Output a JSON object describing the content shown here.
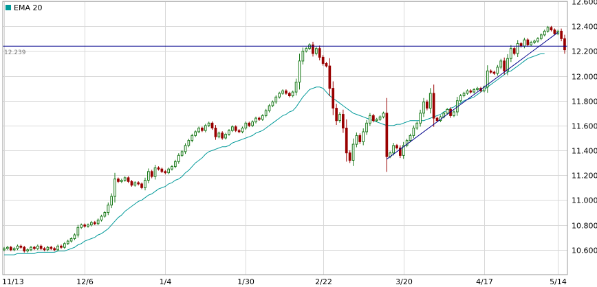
{
  "chart_data": {
    "type": "candlestick",
    "legend": {
      "label": "EMA 20",
      "color": "#009999"
    },
    "colors": {
      "up": "#1a7a1a",
      "down": "#990000",
      "ema": "#009999",
      "trendline": "#00008b",
      "hline": "#00008b",
      "grid": "#d8d8d8",
      "frame": "#9a9a9a"
    },
    "ylim": [
      10.4,
      12.6
    ],
    "grid": true,
    "y_ticks": [
      "12.600",
      "12.400",
      "12.200",
      "12.000",
      "11.800",
      "11.600",
      "11.400",
      "11.200",
      "11.000",
      "10.800",
      "10.600"
    ],
    "y_tick_values": [
      12.6,
      12.4,
      12.2,
      12.0,
      11.8,
      11.6,
      11.4,
      11.2,
      11.0,
      10.8,
      10.6
    ],
    "x_tick_labels": [
      {
        "label": "11/13",
        "index": 0
      },
      {
        "label": "12/6",
        "index": 24
      },
      {
        "label": "1/4",
        "index": 48
      },
      {
        "label": "1/30",
        "index": 72
      },
      {
        "label": "2/22",
        "index": 95
      },
      {
        "label": "3/20",
        "index": 119
      },
      {
        "label": "4/17",
        "index": 143
      },
      {
        "label": "5/14",
        "index": 165
      }
    ],
    "horizontal_line": {
      "label": "12.239",
      "value": 12.239
    },
    "trendlines": [
      {
        "from": {
          "index": 114,
          "value": 11.33
        },
        "to": {
          "index": 165,
          "value": 12.35
        }
      }
    ],
    "start": 10.6,
    "closes": [
      10.61,
      10.62,
      10.6,
      10.61,
      10.63,
      10.62,
      10.59,
      10.6,
      10.62,
      10.61,
      10.63,
      10.61,
      10.6,
      10.62,
      10.61,
      10.6,
      10.63,
      10.62,
      10.65,
      10.67,
      10.69,
      10.72,
      10.78,
      10.8,
      10.79,
      10.8,
      10.82,
      10.81,
      10.84,
      10.87,
      10.9,
      10.96,
      11.03,
      11.17,
      11.15,
      11.16,
      11.18,
      11.15,
      11.12,
      11.14,
      11.13,
      11.1,
      11.16,
      11.23,
      11.19,
      11.26,
      11.25,
      11.23,
      11.22,
      11.25,
      11.27,
      11.31,
      11.36,
      11.39,
      11.44,
      11.48,
      11.52,
      11.55,
      11.58,
      11.56,
      11.6,
      11.62,
      11.58,
      11.51,
      11.54,
      11.5,
      11.53,
      11.56,
      11.59,
      11.56,
      11.55,
      11.58,
      11.62,
      11.6,
      11.63,
      11.66,
      11.65,
      11.68,
      11.72,
      11.76,
      11.79,
      11.83,
      11.86,
      11.88,
      11.86,
      11.84,
      11.87,
      11.95,
      12.12,
      12.2,
      12.22,
      12.25,
      12.18,
      12.22,
      12.15,
      12.1,
      12.08,
      11.9,
      11.74,
      11.64,
      11.69,
      11.58,
      11.38,
      11.32,
      11.45,
      11.52,
      11.47,
      11.55,
      11.62,
      11.68,
      11.64,
      11.65,
      11.67,
      11.7,
      11.35,
      11.38,
      11.44,
      11.42,
      11.36,
      11.44,
      11.48,
      11.52,
      11.58,
      11.62,
      11.7,
      11.79,
      11.74,
      11.86,
      11.66,
      11.64,
      11.67,
      11.7,
      11.73,
      11.68,
      11.71,
      11.8,
      11.84,
      11.86,
      11.88,
      11.87,
      11.89,
      11.9,
      11.88,
      11.91,
      12.04,
      12.03,
      12.02,
      12.07,
      12.12,
      12.04,
      12.14,
      12.22,
      12.18,
      12.26,
      12.24,
      12.29,
      12.25,
      12.27,
      12.28,
      12.3,
      12.33,
      12.36,
      12.39,
      12.37,
      12.34,
      12.36,
      12.3,
      12.21
    ],
    "ema20": [
      10.56,
      10.56,
      10.56,
      10.56,
      10.57,
      10.57,
      10.57,
      10.57,
      10.57,
      10.57,
      10.58,
      10.58,
      10.58,
      10.58,
      10.58,
      10.58,
      10.59,
      10.59,
      10.59,
      10.6,
      10.61,
      10.62,
      10.64,
      10.65,
      10.67,
      10.68,
      10.69,
      10.7,
      10.72,
      10.73,
      10.75,
      10.77,
      10.8,
      10.83,
      10.86,
      10.88,
      10.91,
      10.93,
      10.95,
      10.97,
      10.99,
      11.0,
      11.02,
      11.04,
      11.05,
      11.07,
      11.09,
      11.1,
      11.11,
      11.13,
      11.14,
      11.16,
      11.17,
      11.19,
      11.22,
      11.24,
      11.27,
      11.3,
      11.32,
      11.34,
      11.37,
      11.39,
      11.4,
      11.41,
      11.42,
      11.43,
      11.43,
      11.44,
      11.46,
      11.47,
      11.48,
      11.49,
      11.5,
      11.51,
      11.52,
      11.54,
      11.55,
      11.56,
      11.58,
      11.6,
      11.62,
      11.64,
      11.66,
      11.68,
      11.69,
      11.71,
      11.72,
      11.75,
      11.79,
      11.83,
      11.86,
      11.89,
      11.9,
      11.91,
      11.91,
      11.9,
      11.87,
      11.84,
      11.82,
      11.8,
      11.78,
      11.76,
      11.74,
      11.72,
      11.7,
      11.69,
      11.68,
      11.67,
      11.66,
      11.65,
      11.64,
      11.63,
      11.62,
      11.61,
      11.6,
      11.6,
      11.6,
      11.61,
      11.61,
      11.62,
      11.63,
      11.64,
      11.64,
      11.64,
      11.64,
      11.64,
      11.65,
      11.66,
      11.67,
      11.68,
      11.69,
      11.71,
      11.72,
      11.74,
      11.75,
      11.77,
      11.78,
      11.8,
      11.81,
      11.82,
      11.83,
      11.85,
      11.87,
      11.89,
      11.91,
      11.93,
      11.95,
      11.97,
      11.99,
      12.01,
      12.03,
      12.04,
      12.06,
      12.08,
      12.1,
      12.12,
      12.14,
      12.15,
      12.16,
      12.17,
      12.18,
      12.18
    ]
  }
}
